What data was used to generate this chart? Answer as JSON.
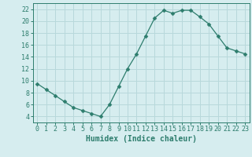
{
  "x": [
    0,
    1,
    2,
    3,
    4,
    5,
    6,
    7,
    8,
    9,
    10,
    11,
    12,
    13,
    14,
    15,
    16,
    17,
    18,
    19,
    20,
    21,
    22,
    23
  ],
  "y": [
    9.5,
    8.5,
    7.5,
    6.5,
    5.5,
    5.0,
    4.5,
    4.0,
    6.0,
    9.0,
    12.0,
    14.5,
    17.5,
    20.5,
    21.8,
    21.3,
    21.8,
    21.8,
    20.7,
    19.5,
    17.5,
    15.5,
    15.0,
    14.5
  ],
  "line_color": "#2d7d6d",
  "marker": "D",
  "marker_size": 2.5,
  "bg_color": "#d6edef",
  "grid_color": "#b8d8db",
  "xlabel": "Humidex (Indice chaleur)",
  "xlim": [
    -0.5,
    23.5
  ],
  "ylim": [
    3,
    23
  ],
  "xticks": [
    0,
    1,
    2,
    3,
    4,
    5,
    6,
    7,
    8,
    9,
    10,
    11,
    12,
    13,
    14,
    15,
    16,
    17,
    18,
    19,
    20,
    21,
    22,
    23
  ],
  "yticks": [
    4,
    6,
    8,
    10,
    12,
    14,
    16,
    18,
    20,
    22
  ],
  "tick_color": "#2d7d6d",
  "label_fontsize": 6,
  "xlabel_fontsize": 7
}
